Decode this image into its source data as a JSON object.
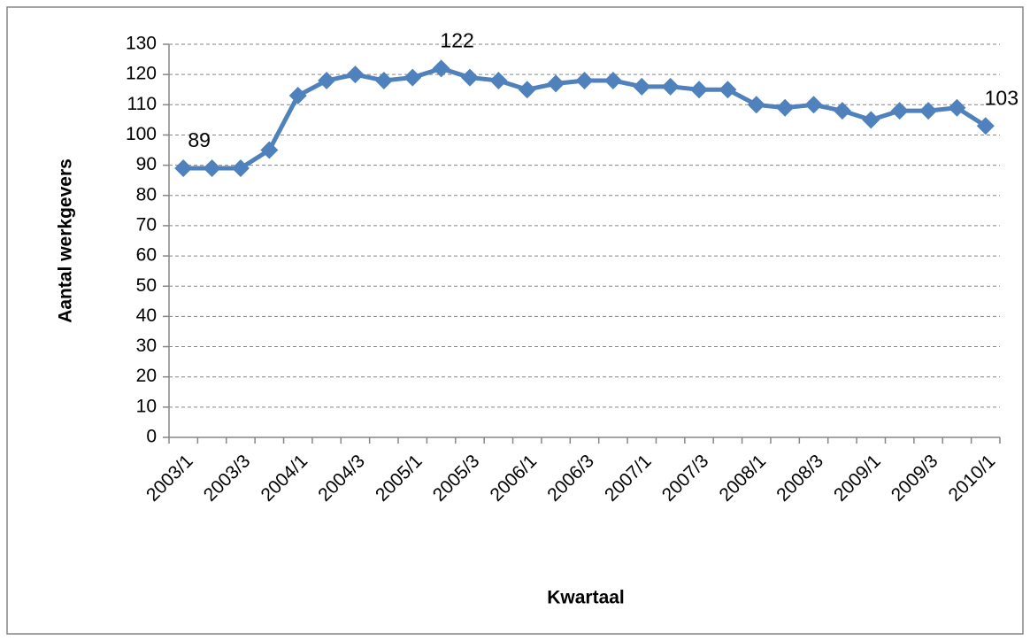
{
  "chart_data": {
    "type": "line",
    "y_label": "Aantal werkgevers",
    "x_label": "Kwartaal",
    "categories": [
      "2003/1",
      null,
      "2003/3",
      null,
      "2004/1",
      null,
      "2004/3",
      null,
      "2005/1",
      null,
      "2005/3",
      null,
      "2006/1",
      null,
      "2006/3",
      null,
      "2007/1",
      null,
      "2007/3",
      null,
      "2008/1",
      null,
      "2008/3",
      null,
      "2009/1",
      null,
      "2009/3",
      null,
      "2010/1"
    ],
    "series": [
      {
        "color": "#4f81bd",
        "values": [
          89,
          89,
          89,
          95,
          113,
          118,
          120,
          118,
          119,
          122,
          119,
          118,
          115,
          117,
          118,
          118,
          116,
          116,
          115,
          115,
          110,
          109,
          110,
          108,
          105,
          108,
          108,
          109,
          103
        ]
      }
    ],
    "data_labels": [
      0,
      9,
      28
    ],
    "ylim": [
      0,
      130
    ],
    "yticks": [
      0,
      10,
      20,
      30,
      40,
      50,
      60,
      70,
      80,
      90,
      100,
      110,
      120,
      130
    ],
    "grid": true
  }
}
